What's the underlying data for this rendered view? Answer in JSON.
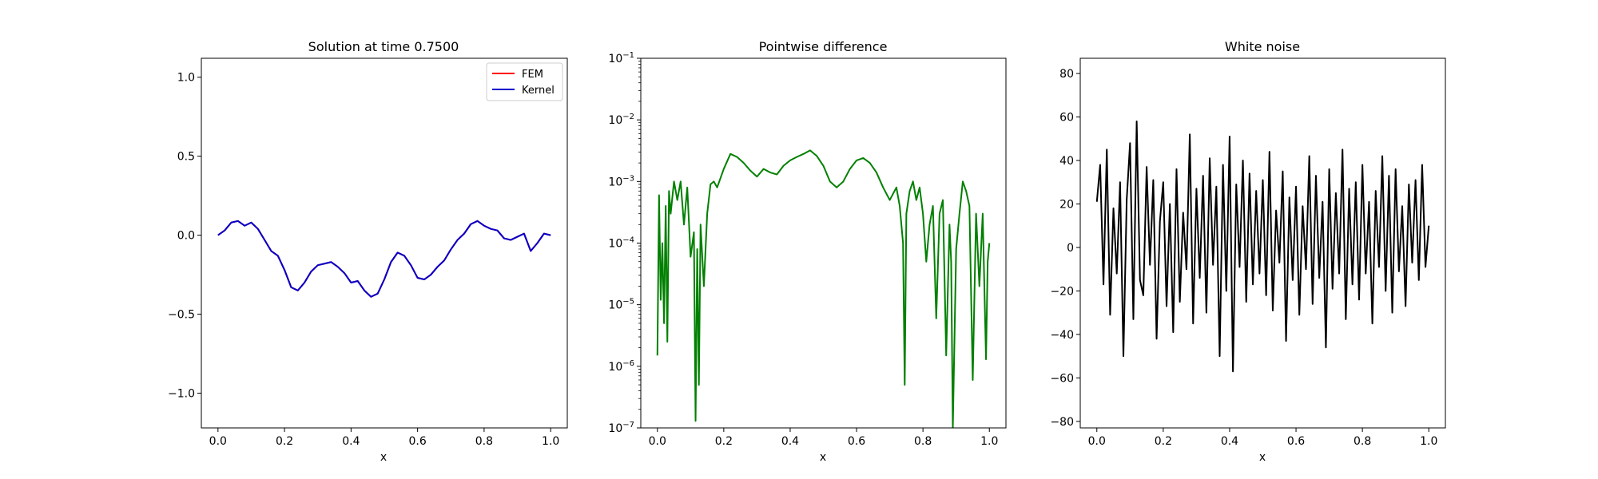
{
  "chart_data": [
    {
      "type": "line",
      "title": "Solution at time 0.7500",
      "xlabel": "x",
      "ylabel": "",
      "xlim": [
        -0.05,
        1.05
      ],
      "ylim": [
        -1.22,
        1.12
      ],
      "xticks": [
        0.0,
        0.2,
        0.4,
        0.6,
        0.8,
        1.0
      ],
      "xtick_labels": [
        "0.0",
        "0.2",
        "0.4",
        "0.6",
        "0.8",
        "1.0"
      ],
      "yticks": [
        1.0,
        0.5,
        0.0,
        -0.5,
        -1.0
      ],
      "ytick_labels": [
        "1.0",
        "0.5",
        "0.0",
        "−0.5",
        "−1.0"
      ],
      "legend_position": "top-right",
      "x": [
        0.0,
        0.02,
        0.04,
        0.06,
        0.08,
        0.1,
        0.12,
        0.14,
        0.16,
        0.18,
        0.2,
        0.22,
        0.24,
        0.26,
        0.28,
        0.3,
        0.32,
        0.34,
        0.36,
        0.38,
        0.4,
        0.42,
        0.44,
        0.46,
        0.48,
        0.5,
        0.52,
        0.54,
        0.56,
        0.58,
        0.6,
        0.62,
        0.64,
        0.66,
        0.68,
        0.7,
        0.72,
        0.74,
        0.76,
        0.78,
        0.8,
        0.82,
        0.84,
        0.86,
        0.88,
        0.9,
        0.92,
        0.94,
        0.96,
        0.98,
        1.0
      ],
      "series": [
        {
          "name": "FEM",
          "color": "#ff0000",
          "values": [
            0.0,
            0.03,
            0.08,
            0.09,
            0.06,
            0.08,
            0.04,
            -0.03,
            -0.1,
            -0.13,
            -0.22,
            -0.33,
            -0.35,
            -0.3,
            -0.23,
            -0.19,
            -0.18,
            -0.17,
            -0.2,
            -0.24,
            -0.3,
            -0.29,
            -0.35,
            -0.39,
            -0.37,
            -0.28,
            -0.17,
            -0.11,
            -0.13,
            -0.19,
            -0.27,
            -0.28,
            -0.25,
            -0.2,
            -0.16,
            -0.09,
            -0.03,
            0.01,
            0.07,
            0.09,
            0.06,
            0.04,
            0.03,
            -0.02,
            -0.03,
            -0.01,
            0.01,
            -0.1,
            -0.05,
            0.01,
            0.0
          ]
        },
        {
          "name": "Kernel",
          "color": "#0000cc",
          "values": [
            0.0,
            0.03,
            0.08,
            0.09,
            0.06,
            0.08,
            0.04,
            -0.03,
            -0.1,
            -0.13,
            -0.22,
            -0.33,
            -0.35,
            -0.3,
            -0.23,
            -0.19,
            -0.18,
            -0.17,
            -0.2,
            -0.24,
            -0.3,
            -0.29,
            -0.35,
            -0.39,
            -0.37,
            -0.28,
            -0.17,
            -0.11,
            -0.13,
            -0.19,
            -0.27,
            -0.28,
            -0.25,
            -0.2,
            -0.16,
            -0.09,
            -0.03,
            0.01,
            0.07,
            0.09,
            0.06,
            0.04,
            0.03,
            -0.02,
            -0.03,
            -0.01,
            0.01,
            -0.1,
            -0.05,
            0.01,
            0.0
          ]
        }
      ]
    },
    {
      "type": "line",
      "title": "Pointwise difference",
      "xlabel": "x",
      "ylabel": "",
      "yscale": "log",
      "xlim": [
        -0.05,
        1.05
      ],
      "ylim": [
        1e-07,
        0.1
      ],
      "xticks": [
        0.0,
        0.2,
        0.4,
        0.6,
        0.8,
        1.0
      ],
      "xtick_labels": [
        "0.0",
        "0.2",
        "0.4",
        "0.6",
        "0.8",
        "1.0"
      ],
      "yticks": [
        0.1,
        0.01,
        0.001,
        0.0001,
        1e-05,
        1e-06,
        1e-07
      ],
      "ytick_labels": [
        {
          "base": "10",
          "exp": "−1"
        },
        {
          "base": "10",
          "exp": "−2"
        },
        {
          "base": "10",
          "exp": "−3"
        },
        {
          "base": "10",
          "exp": "−4"
        },
        {
          "base": "10",
          "exp": "−5"
        },
        {
          "base": "10",
          "exp": "−6"
        },
        {
          "base": "10",
          "exp": "−7"
        }
      ],
      "x": [
        0.0,
        0.005,
        0.01,
        0.015,
        0.02,
        0.025,
        0.03,
        0.035,
        0.04,
        0.05,
        0.06,
        0.07,
        0.08,
        0.09,
        0.1,
        0.11,
        0.115,
        0.12,
        0.125,
        0.13,
        0.14,
        0.15,
        0.16,
        0.17,
        0.18,
        0.2,
        0.22,
        0.24,
        0.26,
        0.28,
        0.3,
        0.32,
        0.34,
        0.36,
        0.38,
        0.4,
        0.42,
        0.44,
        0.46,
        0.48,
        0.5,
        0.52,
        0.54,
        0.56,
        0.58,
        0.6,
        0.62,
        0.64,
        0.66,
        0.68,
        0.7,
        0.72,
        0.73,
        0.74,
        0.745,
        0.75,
        0.76,
        0.77,
        0.78,
        0.79,
        0.8,
        0.81,
        0.82,
        0.83,
        0.84,
        0.85,
        0.86,
        0.87,
        0.88,
        0.885,
        0.89,
        0.9,
        0.91,
        0.92,
        0.93,
        0.94,
        0.95,
        0.96,
        0.97,
        0.98,
        0.99,
        0.995,
        1.0
      ],
      "series": [
        {
          "name": "",
          "color": "#008000",
          "values": [
            1.5e-06,
            0.0006,
            1.2e-05,
            0.0001,
            5e-06,
            0.0004,
            2.5e-06,
            0.0007,
            0.0003,
            0.001,
            0.0005,
            0.001,
            0.0002,
            0.0008,
            6e-05,
            0.00015,
            1.3e-07,
            8e-05,
            5e-07,
            0.0002,
            2e-05,
            0.0003,
            0.0009,
            0.001,
            0.0008,
            0.0016,
            0.0028,
            0.0025,
            0.002,
            0.0015,
            0.0012,
            0.0016,
            0.0014,
            0.0013,
            0.0018,
            0.0022,
            0.0025,
            0.0028,
            0.0032,
            0.0026,
            0.0018,
            0.001,
            0.0008,
            0.001,
            0.0016,
            0.0022,
            0.0024,
            0.002,
            0.0014,
            0.0008,
            0.0005,
            0.0008,
            0.0004,
            0.0001,
            5e-07,
            0.0003,
            0.0007,
            0.001,
            0.0005,
            0.0008,
            0.0003,
            5e-05,
            0.0002,
            0.0004,
            6e-06,
            0.0003,
            0.0005,
            1.5e-06,
            0.0002,
            5e-05,
            1e-07,
            8e-05,
            0.0003,
            0.001,
            0.0007,
            0.0004,
            6e-07,
            0.0003,
            2e-05,
            0.0003,
            1.3e-06,
            5e-05,
            0.0001
          ]
        }
      ]
    },
    {
      "type": "line",
      "title": "White noise",
      "xlabel": "x",
      "ylabel": "",
      "xlim": [
        -0.05,
        1.05
      ],
      "ylim": [
        -83,
        87
      ],
      "xticks": [
        0.0,
        0.2,
        0.4,
        0.6,
        0.8,
        1.0
      ],
      "xtick_labels": [
        "0.0",
        "0.2",
        "0.4",
        "0.6",
        "0.8",
        "1.0"
      ],
      "yticks": [
        80,
        60,
        40,
        20,
        0,
        -20,
        -40,
        -60,
        -80
      ],
      "ytick_labels": [
        "80",
        "60",
        "40",
        "20",
        "0",
        "−20",
        "−40",
        "−60",
        "−80"
      ],
      "x": [
        0.0,
        0.01,
        0.02,
        0.03,
        0.04,
        0.05,
        0.06,
        0.07,
        0.08,
        0.09,
        0.1,
        0.11,
        0.12,
        0.13,
        0.14,
        0.15,
        0.16,
        0.17,
        0.18,
        0.19,
        0.2,
        0.21,
        0.22,
        0.23,
        0.24,
        0.25,
        0.26,
        0.27,
        0.28,
        0.29,
        0.3,
        0.31,
        0.32,
        0.33,
        0.34,
        0.35,
        0.36,
        0.37,
        0.38,
        0.39,
        0.4,
        0.41,
        0.42,
        0.43,
        0.44,
        0.45,
        0.46,
        0.47,
        0.48,
        0.49,
        0.5,
        0.51,
        0.52,
        0.53,
        0.54,
        0.55,
        0.56,
        0.57,
        0.58,
        0.59,
        0.6,
        0.61,
        0.62,
        0.63,
        0.64,
        0.65,
        0.66,
        0.67,
        0.68,
        0.69,
        0.7,
        0.71,
        0.72,
        0.73,
        0.74,
        0.75,
        0.76,
        0.77,
        0.78,
        0.79,
        0.8,
        0.81,
        0.82,
        0.83,
        0.84,
        0.85,
        0.86,
        0.87,
        0.88,
        0.89,
        0.9,
        0.91,
        0.92,
        0.93,
        0.94,
        0.95,
        0.96,
        0.97,
        0.98,
        0.99,
        1.0
      ],
      "series": [
        {
          "name": "",
          "color": "#000000",
          "values": [
            21,
            38,
            -17,
            45,
            -31,
            18,
            -12,
            30,
            -50,
            22,
            48,
            -33,
            58,
            -15,
            -22,
            37,
            -8,
            31,
            -42,
            12,
            30,
            -27,
            20,
            -39,
            36,
            -25,
            16,
            -10,
            52,
            -35,
            27,
            -14,
            33,
            -30,
            41,
            -8,
            28,
            -50,
            38,
            -20,
            51,
            -57,
            29,
            -9,
            40,
            -25,
            34,
            -17,
            26,
            -12,
            31,
            -22,
            44,
            -29,
            17,
            -7,
            35,
            -43,
            23,
            -15,
            28,
            -31,
            19,
            -10,
            42,
            -26,
            33,
            -14,
            21,
            -46,
            36,
            -19,
            25,
            -12,
            45,
            -33,
            27,
            -17,
            30,
            -24,
            38,
            -12,
            21,
            -35,
            26,
            -9,
            42,
            -20,
            33,
            -30,
            36,
            -11,
            19,
            -27,
            29,
            -7,
            31,
            -15,
            38,
            -9,
            10
          ]
        }
      ]
    }
  ]
}
